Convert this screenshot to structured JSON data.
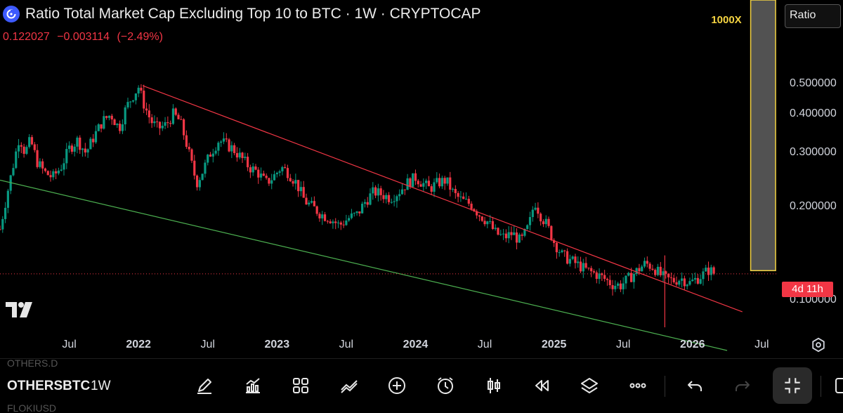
{
  "header": {
    "title": "Ratio Total Market Cap Excluding Top 10 to BTC · 1W · CRYPTOCAP",
    "price": "0.122027",
    "change": "−0.003114",
    "change_pct": "(−2.49%)",
    "scale_mode": "Ratio",
    "countdown": "4d 11h"
  },
  "annotation": {
    "target_box_label": "1000X"
  },
  "toolbar": {
    "symbol": "OTHERSBTC",
    "interval": "1W",
    "ghost_above": "OTHERS.D",
    "ghost_below": "FLOKIUSD",
    "tools": [
      "drawing-tool",
      "indicators",
      "layouts",
      "trend-tools",
      "add",
      "alert",
      "chart-type",
      "replay",
      "layers",
      "more",
      "undo",
      "redo",
      "fullscreen"
    ]
  },
  "colors": {
    "up": "#089981",
    "down": "#f23645",
    "resistance": "#f23645",
    "support": "#4caf50",
    "box": "#f5d442",
    "background": "#000000"
  },
  "chart_data": {
    "type": "candlestick",
    "title": "Ratio Total Market Cap Excluding Top 10 to BTC · 1W · CRYPTOCAP",
    "scale": "log",
    "ylim": [
      0.062,
      1.0
    ],
    "y_ticks": [
      "0.500000",
      "0.400000",
      "0.300000",
      "0.200000",
      "0.100000"
    ],
    "y_tick_values": [
      0.5,
      0.4,
      0.3,
      0.2,
      0.1
    ],
    "x_ticks": [
      {
        "label": "Jul",
        "t": 2021.5,
        "bold": false
      },
      {
        "label": "2022",
        "t": 2022.0,
        "bold": true
      },
      {
        "label": "Jul",
        "t": 2022.5,
        "bold": false
      },
      {
        "label": "2023",
        "t": 2023.0,
        "bold": true
      },
      {
        "label": "Jul",
        "t": 2023.5,
        "bold": false
      },
      {
        "label": "2024",
        "t": 2024.0,
        "bold": true
      },
      {
        "label": "Jul",
        "t": 2024.5,
        "bold": false
      },
      {
        "label": "2025",
        "t": 2025.0,
        "bold": true
      },
      {
        "label": "Jul",
        "t": 2025.5,
        "bold": false
      },
      {
        "label": "2026",
        "t": 2026.0,
        "bold": true
      },
      {
        "label": "Jul",
        "t": 2026.5,
        "bold": false
      }
    ],
    "xlim": [
      2021.0,
      2026.62
    ],
    "last_price": 0.122027,
    "price_path": [
      [
        2021.0,
        0.17
      ],
      [
        2021.05,
        0.22
      ],
      [
        2021.1,
        0.28
      ],
      [
        2021.14,
        0.34
      ],
      [
        2021.18,
        0.3
      ],
      [
        2021.22,
        0.33
      ],
      [
        2021.27,
        0.28
      ],
      [
        2021.32,
        0.26
      ],
      [
        2021.38,
        0.25
      ],
      [
        2021.44,
        0.27
      ],
      [
        2021.5,
        0.31
      ],
      [
        2021.56,
        0.33
      ],
      [
        2021.62,
        0.3
      ],
      [
        2021.68,
        0.34
      ],
      [
        2021.74,
        0.38
      ],
      [
        2021.8,
        0.4
      ],
      [
        2021.86,
        0.36
      ],
      [
        2021.91,
        0.42
      ],
      [
        2021.96,
        0.46
      ],
      [
        2022.0,
        0.49
      ],
      [
        2022.04,
        0.43
      ],
      [
        2022.09,
        0.38
      ],
      [
        2022.14,
        0.36
      ],
      [
        2022.2,
        0.37
      ],
      [
        2022.25,
        0.4
      ],
      [
        2022.3,
        0.38
      ],
      [
        2022.34,
        0.33
      ],
      [
        2022.38,
        0.28
      ],
      [
        2022.42,
        0.24
      ],
      [
        2022.46,
        0.26
      ],
      [
        2022.52,
        0.3
      ],
      [
        2022.58,
        0.33
      ],
      [
        2022.63,
        0.32
      ],
      [
        2022.68,
        0.31
      ],
      [
        2022.74,
        0.29
      ],
      [
        2022.8,
        0.27
      ],
      [
        2022.86,
        0.26
      ],
      [
        2022.92,
        0.24
      ],
      [
        2022.97,
        0.25
      ],
      [
        2023.03,
        0.27
      ],
      [
        2023.08,
        0.26
      ],
      [
        2023.14,
        0.24
      ],
      [
        2023.2,
        0.21
      ],
      [
        2023.26,
        0.2
      ],
      [
        2023.32,
        0.19
      ],
      [
        2023.38,
        0.185
      ],
      [
        2023.45,
        0.175
      ],
      [
        2023.52,
        0.185
      ],
      [
        2023.58,
        0.19
      ],
      [
        2023.64,
        0.21
      ],
      [
        2023.7,
        0.225
      ],
      [
        2023.76,
        0.22
      ],
      [
        2023.82,
        0.215
      ],
      [
        2023.88,
        0.225
      ],
      [
        2023.94,
        0.24
      ],
      [
        2024.0,
        0.25
      ],
      [
        2024.05,
        0.24
      ],
      [
        2024.1,
        0.23
      ],
      [
        2024.16,
        0.24
      ],
      [
        2024.22,
        0.245
      ],
      [
        2024.28,
        0.22
      ],
      [
        2024.34,
        0.21
      ],
      [
        2024.4,
        0.205
      ],
      [
        2024.46,
        0.19
      ],
      [
        2024.52,
        0.18
      ],
      [
        2024.58,
        0.165
      ],
      [
        2024.64,
        0.16
      ],
      [
        2024.7,
        0.165
      ],
      [
        2024.76,
        0.155
      ],
      [
        2024.82,
        0.175
      ],
      [
        2024.86,
        0.21
      ],
      [
        2024.9,
        0.19
      ],
      [
        2024.95,
        0.175
      ],
      [
        2025.0,
        0.155
      ],
      [
        2025.06,
        0.14
      ],
      [
        2025.12,
        0.135
      ],
      [
        2025.18,
        0.13
      ],
      [
        2025.24,
        0.125
      ],
      [
        2025.3,
        0.122
      ],
      [
        2025.36,
        0.118
      ],
      [
        2025.42,
        0.113
      ],
      [
        2025.48,
        0.112
      ],
      [
        2025.54,
        0.118
      ],
      [
        2025.6,
        0.125
      ],
      [
        2025.66,
        0.132
      ],
      [
        2025.72,
        0.128
      ],
      [
        2025.76,
        0.122
      ],
      [
        2025.8,
        0.118
      ],
      [
        2025.86,
        0.116
      ],
      [
        2025.92,
        0.118
      ],
      [
        2025.98,
        0.114
      ],
      [
        2026.02,
        0.117
      ],
      [
        2026.07,
        0.121
      ],
      [
        2026.12,
        0.126
      ],
      [
        2026.16,
        0.122
      ]
    ],
    "trendlines": [
      {
        "name": "resistance",
        "color": "#f23645",
        "points": [
          [
            2022.03,
            0.495
          ],
          [
            2026.36,
            0.092
          ]
        ]
      },
      {
        "name": "support",
        "color": "#4caf50",
        "points": [
          [
            2021.0,
            0.245
          ],
          [
            2026.25,
            0.069
          ]
        ]
      }
    ],
    "target_box": {
      "label": "1000X",
      "t_start": 2026.42,
      "t_end": 2026.6,
      "y_low": 0.125,
      "y_high": 1.0
    }
  }
}
